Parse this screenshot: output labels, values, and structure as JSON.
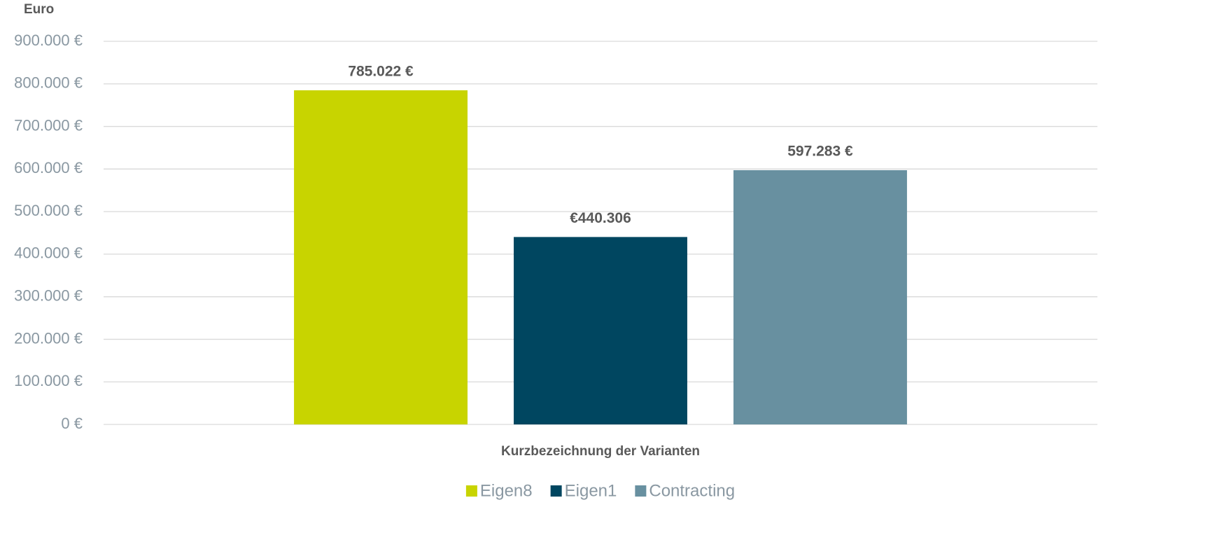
{
  "chart_data": {
    "type": "bar",
    "y_axis_label": "Euro",
    "x_axis_label": "Kurzbezeichnung der Varianten",
    "categories": [
      null
    ],
    "series": [
      {
        "name": "Eigen8",
        "color": "#c8d400",
        "values": [
          785022
        ],
        "value_labels": [
          "785.022 €"
        ]
      },
      {
        "name": "Eigen1",
        "color": "#004660",
        "values": [
          440306
        ],
        "value_labels": [
          "€440.306"
        ]
      },
      {
        "name": "Contracting",
        "color": "#6890a0",
        "values": [
          597283
        ],
        "value_labels": [
          "597.283 €"
        ]
      }
    ],
    "ylim": [
      0,
      900000
    ],
    "yticks": [
      {
        "value": 0,
        "label": "0 €"
      },
      {
        "value": 100000,
        "label": "100.000 €"
      },
      {
        "value": 200000,
        "label": "200.000 €"
      },
      {
        "value": 300000,
        "label": "300.000 €"
      },
      {
        "value": 400000,
        "label": "400.000 €"
      },
      {
        "value": 500000,
        "label": "500.000 €"
      },
      {
        "value": 600000,
        "label": "600.000 €"
      },
      {
        "value": 700000,
        "label": "700.000 €"
      },
      {
        "value": 800000,
        "label": "800.000 €"
      },
      {
        "value": 900000,
        "label": "900.000 €"
      }
    ],
    "grid": true,
    "legend": "bottom"
  }
}
